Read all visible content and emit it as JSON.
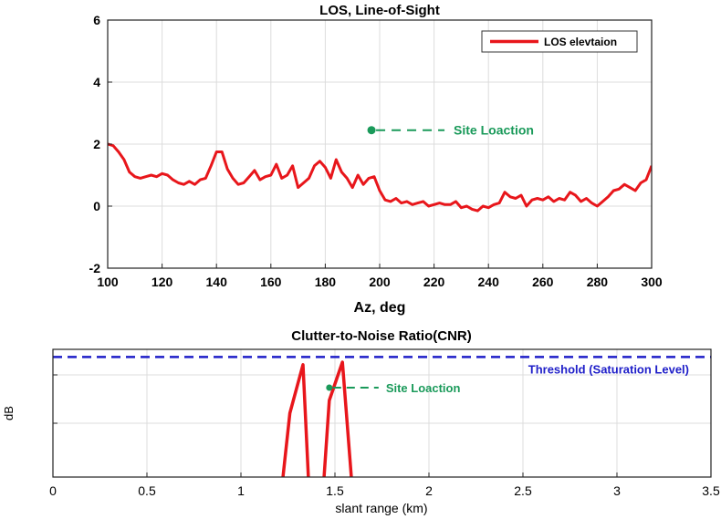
{
  "chart_data": [
    {
      "type": "line",
      "title": "LOS, Line-of-Sight",
      "xlabel": "Az, deg",
      "ylabel": "",
      "xlim": [
        100,
        300
      ],
      "ylim": [
        -2,
        6
      ],
      "xticks": [
        100,
        120,
        140,
        160,
        180,
        200,
        220,
        240,
        260,
        280,
        300
      ],
      "yticks": [
        -2,
        0,
        2,
        4,
        6
      ],
      "grid": true,
      "legend": "top-right",
      "series": [
        {
          "name": "LOS elevtaion",
          "color": "#e8161b",
          "x": [
            100,
            102,
            104,
            106,
            108,
            110,
            112,
            114,
            116,
            118,
            120,
            122,
            124,
            126,
            128,
            130,
            132,
            134,
            136,
            138,
            140,
            142,
            144,
            146,
            148,
            150,
            152,
            154,
            156,
            158,
            160,
            162,
            164,
            166,
            168,
            170,
            172,
            174,
            176,
            178,
            180,
            182,
            184,
            186,
            188,
            190,
            192,
            194,
            196,
            198,
            200,
            202,
            204,
            206,
            208,
            210,
            212,
            214,
            216,
            218,
            220,
            222,
            224,
            226,
            228,
            230,
            232,
            234,
            236,
            238,
            240,
            242,
            244,
            246,
            248,
            250,
            252,
            254,
            256,
            258,
            260,
            262,
            264,
            266,
            268,
            270,
            272,
            274,
            276,
            278,
            280,
            282,
            284,
            286,
            288,
            290,
            292,
            294,
            296,
            298,
            300
          ],
          "values": [
            2.0,
            1.95,
            1.75,
            1.5,
            1.1,
            0.95,
            0.9,
            0.95,
            1.0,
            0.95,
            1.05,
            1.0,
            0.85,
            0.75,
            0.7,
            0.8,
            0.7,
            0.85,
            0.9,
            1.3,
            1.75,
            1.75,
            1.2,
            0.9,
            0.7,
            0.75,
            0.95,
            1.15,
            0.85,
            0.95,
            1.0,
            1.35,
            0.9,
            1.0,
            1.3,
            0.6,
            0.75,
            0.9,
            1.3,
            1.45,
            1.25,
            0.9,
            1.5,
            1.1,
            0.9,
            0.6,
            1.0,
            0.7,
            0.9,
            0.95,
            0.5,
            0.2,
            0.15,
            0.25,
            0.1,
            0.15,
            0.05,
            0.1,
            0.15,
            0.0,
            0.05,
            0.1,
            0.05,
            0.05,
            0.15,
            -0.05,
            0.0,
            -0.1,
            -0.15,
            0.0,
            -0.05,
            0.05,
            0.1,
            0.45,
            0.3,
            0.25,
            0.35,
            0.0,
            0.2,
            0.25,
            0.2,
            0.3,
            0.15,
            0.25,
            0.2,
            0.45,
            0.35,
            0.15,
            0.25,
            0.1,
            0.0,
            0.15,
            0.3,
            0.5,
            0.55,
            0.7,
            0.6,
            0.5,
            0.75,
            0.85,
            1.3
          ]
        }
      ],
      "annotations": [
        {
          "text": "Site Loaction",
          "x": 197,
          "y": 2.45,
          "color": "#1a9a5a"
        }
      ]
    },
    {
      "type": "line",
      "title": "Clutter-to-Noise Ratio(CNR)",
      "xlabel": "slant range (km)",
      "ylabel": "dB",
      "xlim": [
        0,
        3.5
      ],
      "ylim": [
        0,
        1
      ],
      "xticks": [
        "0",
        "0.5",
        "1",
        "1.5",
        "2",
        "2.5",
        "3",
        "3.5"
      ],
      "grid": true,
      "threshold": {
        "label": "Threshold (Saturation Level)",
        "y": 0.94,
        "color": "#1e1ec8"
      },
      "series": [
        {
          "name": "",
          "color": "#e8161b",
          "x": [
            1.22,
            1.26,
            1.33,
            1.36,
            1.44,
            1.47,
            1.54,
            1.59
          ],
          "values": [
            -0.05,
            0.5,
            0.88,
            -0.05,
            -0.05,
            0.6,
            0.9,
            -0.05
          ]
        }
      ],
      "annotations": [
        {
          "text": "Site Loaction",
          "x": 1.47,
          "y": 0.7,
          "color": "#1a9a5a"
        }
      ]
    }
  ]
}
